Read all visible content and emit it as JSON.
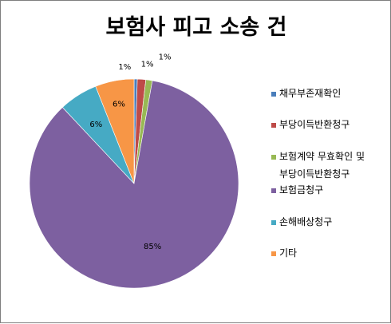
{
  "chart_data": {
    "type": "pie",
    "title": "보험사 피고 소송 건",
    "categories": [
      "채무부존재확인",
      "부당이득반환청구",
      "보험계약 무효확인 및 부당이득반환청구",
      "보험금청구",
      "손해배상청구",
      "기타"
    ],
    "values": [
      0.5,
      1.3,
      1.0,
      85.2,
      6.0,
      6.0
    ],
    "data_labels": [
      "1%",
      "1%",
      "1%",
      "85%",
      "6%",
      "6%"
    ],
    "colors": [
      "#4a7ebb",
      "#be4b48",
      "#98b954",
      "#7d60a0",
      "#46aac4",
      "#f79646"
    ],
    "legend_position": "right",
    "legend": [
      {
        "lines": [
          "채무부존재확인"
        ]
      },
      {
        "lines": [
          "부당이득반환청구"
        ]
      },
      {
        "lines": [
          "보험계약 무효확인 및",
          "부당이득반환청구"
        ]
      },
      {
        "lines": [
          "보험금청구"
        ]
      },
      {
        "lines": [
          "손해배상청구"
        ]
      },
      {
        "lines": [
          "기타"
        ]
      }
    ]
  }
}
